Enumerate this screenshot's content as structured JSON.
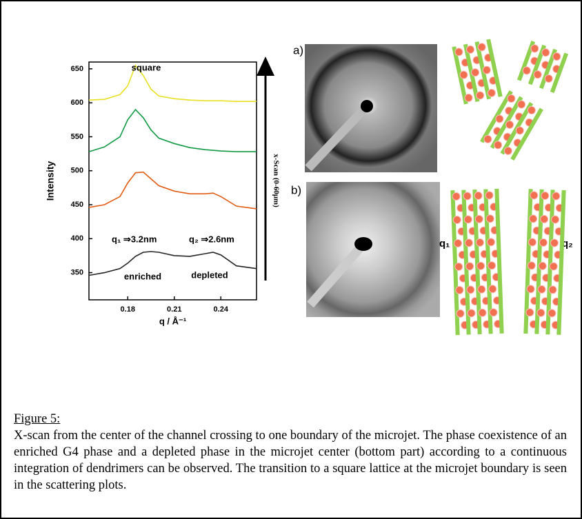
{
  "chart_data": {
    "type": "line",
    "y_label": "Intensity",
    "x_label": "q / Å⁻¹",
    "x": [
      0.155,
      0.165,
      0.175,
      0.18,
      0.185,
      0.19,
      0.195,
      0.2,
      0.21,
      0.22,
      0.23,
      0.235,
      0.24,
      0.25,
      0.263
    ],
    "series": [
      {
        "color": "#e8e020",
        "values": [
          604,
          605,
          612,
          625,
          655,
          640,
          620,
          610,
          606,
          604,
          603,
          603,
          603,
          602,
          602
        ]
      },
      {
        "color": "#119944",
        "values": [
          528,
          535,
          550,
          575,
          590,
          578,
          560,
          548,
          540,
          534,
          531,
          530,
          529,
          528,
          528
        ]
      },
      {
        "color": "#e05a10",
        "values": [
          446,
          450,
          462,
          482,
          497,
          498,
          488,
          478,
          470,
          466,
          466,
          467,
          462,
          448,
          444
        ]
      },
      {
        "color": "#222222",
        "values": [
          346,
          350,
          356,
          364,
          374,
          380,
          381,
          380,
          375,
          374,
          378,
          380,
          376,
          360,
          356
        ]
      }
    ],
    "xlim": [
      0.155,
      0.263
    ],
    "ylim": [
      310,
      660
    ],
    "xticks": [
      0.18,
      0.21,
      0.24
    ],
    "yticks": [
      350,
      400,
      450,
      500,
      550,
      600,
      650
    ],
    "annotations": [
      "square",
      "q₁ ⇒3.2nm",
      "q₂ ⇒2.6nm",
      "enriched",
      "depleted"
    ],
    "arrow_label": "x-Scan (0-60µm)"
  },
  "figure": {
    "panel_a": "a)",
    "panel_b": "b)",
    "q1": "q₁",
    "q2": "q₂"
  },
  "caption": {
    "title": "Figure 5:",
    "text": "X-scan from the center of the channel crossing to one boundary of the microjet. The phase coexistence of an enriched G4 phase and a depleted phase in the microjet center (bottom part) according to a continuous integration of dendrimers can be observed. The transition to a square lattice at the microjet boundary is seen in the scattering plots."
  }
}
